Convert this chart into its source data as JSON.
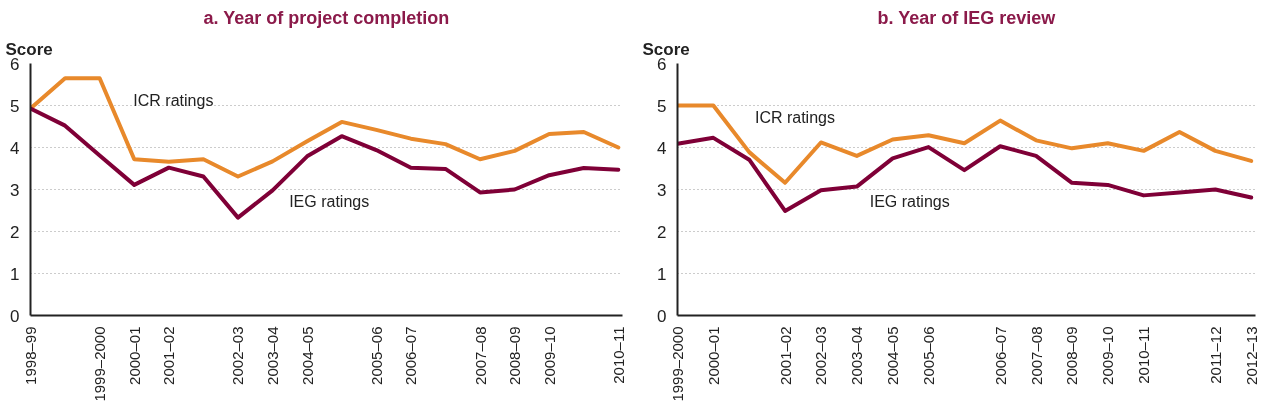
{
  "chart_data": [
    {
      "type": "line",
      "title": "a. Year of project completion",
      "ylabel": "Score",
      "ylim": [
        0,
        6
      ],
      "yticks": [
        0,
        1,
        2,
        3,
        4,
        5,
        6
      ],
      "categories": [
        "1998–99",
        null,
        "1999–2000",
        "2000–01",
        "2001–02",
        null,
        "2002–03",
        "2003–04",
        "2004–05",
        null,
        "2005–06",
        "2006–07",
        null,
        "2007–08",
        "2008–09",
        "2009–10",
        null,
        "2010–11"
      ],
      "grid": "y",
      "legend": false,
      "line_style": "solid",
      "series": [
        {
          "name": "ICR ratings",
          "color": "#e8892b",
          "values": [
            4.93,
            5.65,
            5.65,
            3.72,
            3.66,
            3.72,
            3.31,
            3.67,
            4.15,
            4.61,
            4.42,
            4.21,
            4.08,
            3.72,
            3.92,
            4.32,
            4.37,
            4.0
          ]
        },
        {
          "name": "IEG ratings",
          "color": "#7f0037",
          "values": [
            4.93,
            4.52,
            3.81,
            3.11,
            3.52,
            3.31,
            2.33,
            2.98,
            3.79,
            4.27,
            3.94,
            3.52,
            3.49,
            2.93,
            3.0,
            3.34,
            3.51,
            3.47
          ]
        }
      ]
    },
    {
      "type": "line",
      "title": "b. Year of IEG review",
      "ylabel": "Score",
      "ylim": [
        0,
        6
      ],
      "yticks": [
        0,
        1,
        2,
        3,
        4,
        5,
        6
      ],
      "categories": [
        "1999–2000",
        "2000–01",
        null,
        "2001–02",
        "2002–03",
        "2003–04",
        "2004–05",
        "2005–06",
        null,
        "2006–07",
        "2007–08",
        "2008–09",
        "2009–10",
        "2010–11",
        null,
        "2011–12",
        "2012–13"
      ],
      "grid": "y",
      "legend": false,
      "line_style": "solid",
      "series": [
        {
          "name": "ICR ratings",
          "color": "#e8892b",
          "values": [
            5.0,
            5.0,
            3.89,
            3.16,
            4.12,
            3.8,
            4.19,
            4.29,
            4.1,
            4.64,
            4.17,
            3.98,
            4.1,
            3.92,
            4.37,
            3.92,
            3.68
          ]
        },
        {
          "name": "IEG ratings",
          "color": "#7f0037",
          "values": [
            4.09,
            4.23,
            3.71,
            2.49,
            2.98,
            3.07,
            3.74,
            4.01,
            3.46,
            4.03,
            3.8,
            3.16,
            3.11,
            2.86,
            2.93,
            3.0,
            2.81
          ]
        }
      ]
    }
  ]
}
